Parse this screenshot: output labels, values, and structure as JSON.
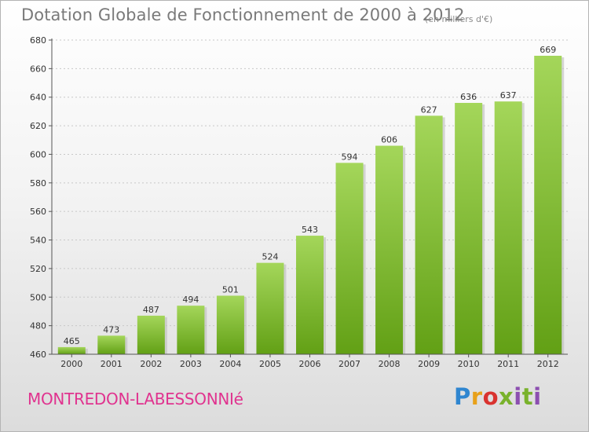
{
  "title": "Dotation Globale de Fonctionnement de 2000 à 2012",
  "subtitle": "(en milliers d'€)",
  "commune": "MONTREDON-LABESSONNIé",
  "logo_text": "Proxiti",
  "colors": {
    "bar_top": "#a4d65a",
    "bar_bottom": "#62a015",
    "title": "#7a7a7a",
    "commune": "#e0338f"
  },
  "chart_data": {
    "type": "bar",
    "title": "Dotation Globale de Fonctionnement de 2000 à 2012",
    "subtitle": "(en milliers d'€)",
    "categories": [
      "2000",
      "2001",
      "2002",
      "2003",
      "2004",
      "2005",
      "2006",
      "2007",
      "2008",
      "2009",
      "2010",
      "2011",
      "2012"
    ],
    "values": [
      465,
      473,
      487,
      494,
      501,
      524,
      543,
      594,
      606,
      627,
      636,
      637,
      669
    ],
    "ylim": [
      460,
      680
    ],
    "yticks": [
      460,
      480,
      500,
      520,
      540,
      560,
      580,
      600,
      620,
      640,
      660,
      680
    ],
    "grid": true,
    "data_labels": true
  }
}
